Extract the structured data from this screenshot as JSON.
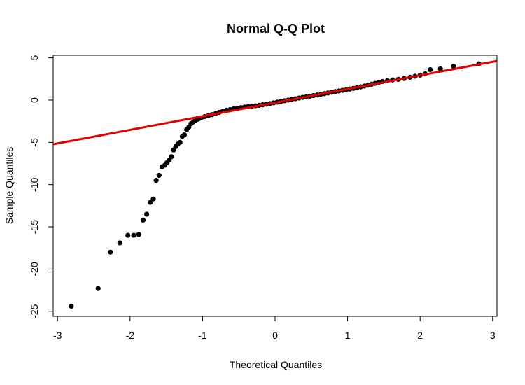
{
  "chart_data": {
    "type": "scatter",
    "title": "Normal Q-Q Plot",
    "xlabel": "Theoretical Quantiles",
    "ylabel": "Sample Quantiles",
    "xlim": [
      -3.06,
      3.06
    ],
    "ylim": [
      -25.6,
      5.3
    ],
    "x_ticks": [
      -3,
      -2,
      -1,
      0,
      1,
      2,
      3
    ],
    "y_ticks": [
      5,
      0,
      -5,
      -10,
      -15,
      -20,
      -25
    ],
    "grid": false,
    "point_color": "#000000",
    "reference_line": {
      "color": "#e00000",
      "slope": 1.61,
      "intercept": -0.3
    },
    "points": [
      [
        -2.81,
        -24.4
      ],
      [
        -2.44,
        -22.3
      ],
      [
        -2.27,
        -18.0
      ],
      [
        -2.14,
        -16.9
      ],
      [
        -2.03,
        -16.0
      ],
      [
        -1.95,
        -16.0
      ],
      [
        -1.88,
        -15.9
      ],
      [
        -1.82,
        -14.2
      ],
      [
        -1.77,
        -13.5
      ],
      [
        -1.72,
        -12.1
      ],
      [
        -1.68,
        -11.7
      ],
      [
        -1.64,
        -9.5
      ],
      [
        -1.6,
        -8.9
      ],
      [
        -1.56,
        -7.9
      ],
      [
        -1.52,
        -7.7
      ],
      [
        -1.49,
        -7.4
      ],
      [
        -1.46,
        -7.1
      ],
      [
        -1.43,
        -6.7
      ],
      [
        -1.4,
        -5.9
      ],
      [
        -1.37,
        -5.5
      ],
      [
        -1.34,
        -5.2
      ],
      [
        -1.31,
        -5.0
      ],
      [
        -1.28,
        -4.3
      ],
      [
        -1.25,
        -4.1
      ],
      [
        -1.22,
        -3.5
      ],
      [
        -1.19,
        -3.2
      ],
      [
        -1.16,
        -2.8
      ],
      [
        -1.13,
        -2.6
      ],
      [
        -1.1,
        -2.4
      ],
      [
        -1.06,
        -2.25
      ],
      [
        -1.02,
        -2.1
      ],
      [
        -0.97,
        -1.95
      ],
      [
        -0.92,
        -1.85
      ],
      [
        -0.87,
        -1.72
      ],
      [
        -0.82,
        -1.6
      ],
      [
        -0.77,
        -1.45
      ],
      [
        -0.72,
        -1.3
      ],
      [
        -0.67,
        -1.2
      ],
      [
        -0.62,
        -1.12
      ],
      [
        -0.57,
        -1.03
      ],
      [
        -0.52,
        -0.96
      ],
      [
        -0.47,
        -0.89
      ],
      [
        -0.42,
        -0.82
      ],
      [
        -0.37,
        -0.76
      ],
      [
        -0.32,
        -0.72
      ],
      [
        -0.27,
        -0.67
      ],
      [
        -0.22,
        -0.62
      ],
      [
        -0.17,
        -0.55
      ],
      [
        -0.12,
        -0.48
      ],
      [
        -0.07,
        -0.4
      ],
      [
        -0.02,
        -0.32
      ],
      [
        0.03,
        -0.24
      ],
      [
        0.08,
        -0.16
      ],
      [
        0.13,
        -0.08
      ],
      [
        0.18,
        0.0
      ],
      [
        0.23,
        0.08
      ],
      [
        0.28,
        0.16
      ],
      [
        0.33,
        0.24
      ],
      [
        0.38,
        0.32
      ],
      [
        0.43,
        0.39
      ],
      [
        0.48,
        0.46
      ],
      [
        0.53,
        0.53
      ],
      [
        0.58,
        0.6
      ],
      [
        0.63,
        0.68
      ],
      [
        0.68,
        0.76
      ],
      [
        0.73,
        0.84
      ],
      [
        0.78,
        0.92
      ],
      [
        0.83,
        1.0
      ],
      [
        0.88,
        1.08
      ],
      [
        0.93,
        1.15
      ],
      [
        0.98,
        1.22
      ],
      [
        1.03,
        1.3
      ],
      [
        1.08,
        1.38
      ],
      [
        1.13,
        1.47
      ],
      [
        1.18,
        1.56
      ],
      [
        1.23,
        1.66
      ],
      [
        1.28,
        1.76
      ],
      [
        1.33,
        1.87
      ],
      [
        1.38,
        1.98
      ],
      [
        1.43,
        2.1
      ],
      [
        1.48,
        2.2
      ],
      [
        1.55,
        2.3
      ],
      [
        1.62,
        2.38
      ],
      [
        1.7,
        2.45
      ],
      [
        1.78,
        2.55
      ],
      [
        1.86,
        2.7
      ],
      [
        1.93,
        2.82
      ],
      [
        2.0,
        2.95
      ],
      [
        2.07,
        3.1
      ],
      [
        2.14,
        3.6
      ],
      [
        2.28,
        3.7
      ],
      [
        2.46,
        4.0
      ],
      [
        2.81,
        4.3
      ]
    ]
  }
}
